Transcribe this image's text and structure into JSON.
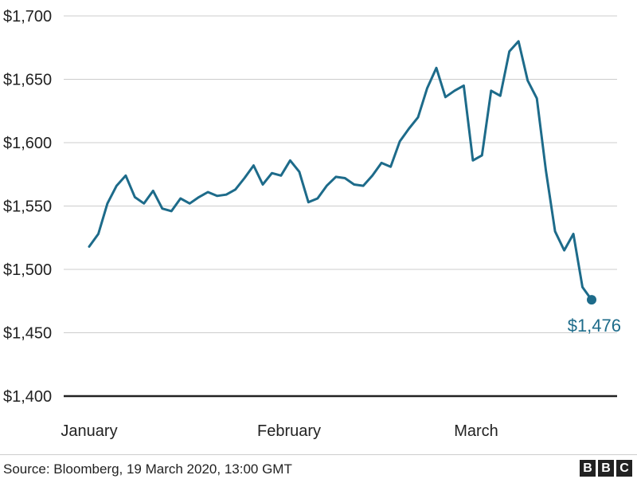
{
  "chart_data": {
    "type": "line",
    "y_ticks": [
      1400,
      1450,
      1500,
      1550,
      1600,
      1650,
      1700
    ],
    "y_tick_labels": [
      "$1,400",
      "$1,450",
      "$1,500",
      "$1,550",
      "$1,600",
      "$1,650",
      "$1,700"
    ],
    "ylim": [
      1400,
      1700
    ],
    "x_tick_labels": [
      "January",
      "February",
      "March"
    ],
    "grid": true,
    "line_color": "#1d6b8a",
    "end_label": "$1,476",
    "series": [
      {
        "values": [
          1518,
          1528,
          1552,
          1566,
          1574,
          1557,
          1552,
          1562,
          1548,
          1546,
          1556,
          1552,
          1557,
          1561,
          1558,
          1559,
          1563,
          1572,
          1582,
          1567,
          1576,
          1574,
          1586,
          1577,
          1553,
          1556,
          1566,
          1573,
          1572,
          1567,
          1566,
          1574,
          1584,
          1581,
          1601,
          1611,
          1620,
          1643,
          1659,
          1636,
          1641,
          1645,
          1586,
          1590,
          1641,
          1637,
          1672,
          1680,
          1649,
          1635,
          1578,
          1530,
          1515,
          1528,
          1486,
          1476
        ]
      }
    ]
  },
  "footer": {
    "source": "Source: Bloomberg, 19 March 2020, 13:00 GMT",
    "logo": [
      "B",
      "B",
      "C"
    ]
  }
}
